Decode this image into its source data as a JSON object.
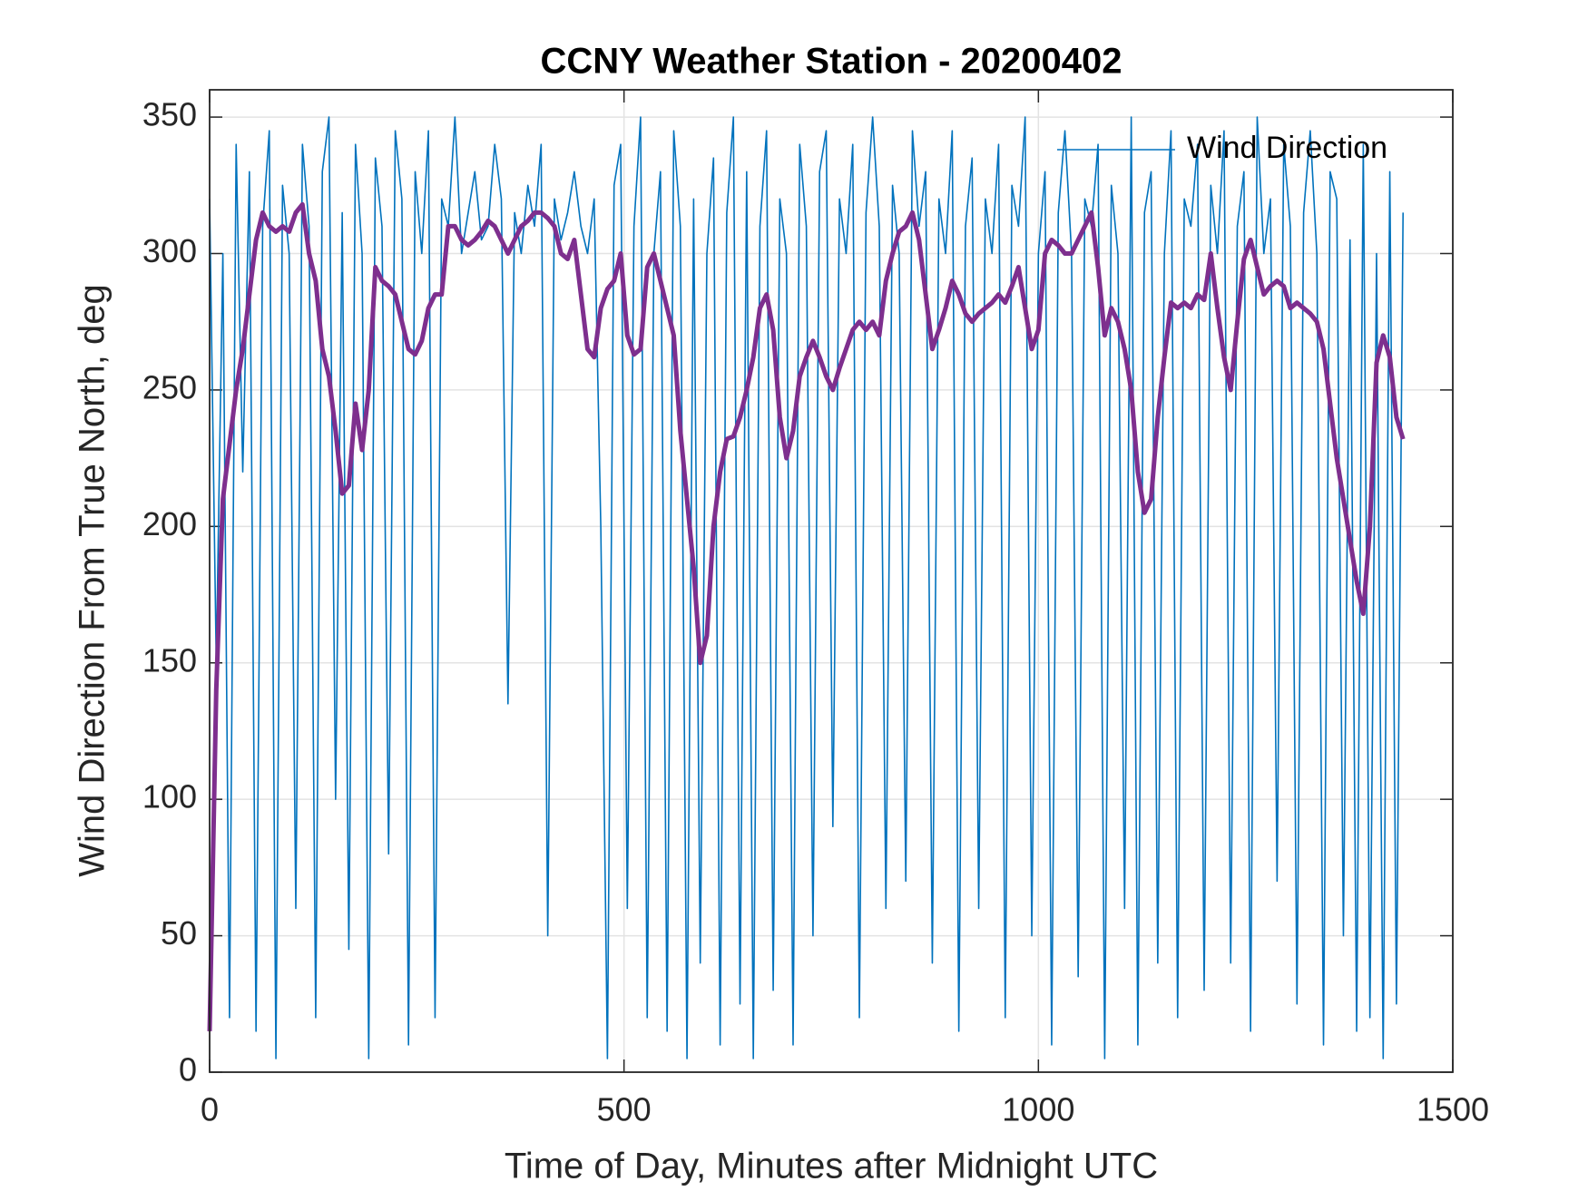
{
  "chart_data": {
    "type": "line",
    "title": "CCNY Weather Station - 20200402",
    "xlabel": "Time of Day, Minutes after Midnight UTC",
    "ylabel": "Wind Direction From True North, deg",
    "x": [
      0,
      8,
      16,
      24,
      32,
      40,
      48,
      56,
      64,
      72,
      80,
      88,
      96,
      104,
      112,
      120,
      128,
      136,
      144,
      152,
      160,
      168,
      176,
      184,
      192,
      200,
      208,
      216,
      224,
      232,
      240,
      248,
      256,
      264,
      272,
      280,
      288,
      296,
      304,
      312,
      320,
      328,
      336,
      344,
      352,
      360,
      368,
      376,
      384,
      392,
      400,
      408,
      416,
      424,
      432,
      440,
      448,
      456,
      464,
      472,
      480,
      488,
      496,
      504,
      512,
      520,
      528,
      536,
      544,
      552,
      560,
      568,
      576,
      584,
      592,
      600,
      608,
      616,
      624,
      632,
      640,
      648,
      656,
      664,
      672,
      680,
      688,
      696,
      704,
      712,
      720,
      728,
      736,
      744,
      752,
      760,
      768,
      776,
      784,
      792,
      800,
      808,
      816,
      824,
      832,
      840,
      848,
      856,
      864,
      872,
      880,
      888,
      896,
      904,
      912,
      920,
      928,
      936,
      944,
      952,
      960,
      968,
      976,
      984,
      992,
      1000,
      1008,
      1016,
      1024,
      1032,
      1040,
      1048,
      1056,
      1064,
      1072,
      1080,
      1088,
      1096,
      1104,
      1112,
      1120,
      1128,
      1136,
      1144,
      1152,
      1160,
      1168,
      1176,
      1184,
      1192,
      1200,
      1208,
      1216,
      1224,
      1232,
      1240,
      1248,
      1256,
      1264,
      1272,
      1280,
      1288,
      1296,
      1304,
      1312,
      1320,
      1328,
      1336,
      1344,
      1352,
      1360,
      1368,
      1376,
      1384,
      1392,
      1400,
      1408,
      1416,
      1424,
      1432,
      1440
    ],
    "series": [
      {
        "name": "Wind Direction",
        "color": "#0072BD",
        "width": 1.6,
        "values": [
          320,
          150,
          300,
          20,
          340,
          220,
          330,
          15,
          310,
          345,
          5,
          325,
          300,
          60,
          340,
          310,
          20,
          330,
          350,
          100,
          315,
          45,
          340,
          300,
          5,
          335,
          310,
          80,
          345,
          320,
          10,
          330,
          300,
          345,
          20,
          320,
          310,
          350,
          300,
          315,
          330,
          305,
          310,
          340,
          320,
          135,
          315,
          300,
          325,
          310,
          340,
          50,
          320,
          305,
          315,
          330,
          310,
          300,
          320,
          200,
          5,
          325,
          340,
          60,
          310,
          350,
          20,
          300,
          330,
          15,
          345,
          310,
          5,
          320,
          40,
          300,
          335,
          10,
          315,
          350,
          25,
          330,
          5,
          310,
          345,
          30,
          320,
          300,
          10,
          340,
          310,
          50,
          330,
          345,
          90,
          320,
          300,
          340,
          20,
          315,
          350,
          310,
          60,
          325,
          300,
          70,
          345,
          310,
          330,
          40,
          320,
          300,
          345,
          15,
          310,
          335,
          60,
          320,
          300,
          340,
          20,
          325,
          310,
          350,
          50,
          300,
          330,
          10,
          315,
          345,
          300,
          35,
          320,
          310,
          340,
          5,
          325,
          300,
          60,
          350,
          10,
          315,
          330,
          40,
          300,
          345,
          20,
          320,
          310,
          340,
          30,
          325,
          300,
          345,
          40,
          310,
          330,
          15,
          350,
          300,
          320,
          70,
          340,
          310,
          25,
          315,
          345,
          300,
          10,
          330,
          320,
          50,
          305,
          15,
          340,
          20,
          300,
          5,
          330,
          25,
          315
        ]
      },
      {
        "color": "#7E2F8E",
        "width": 5,
        "values": [
          15,
          140,
          210,
          230,
          250,
          265,
          285,
          305,
          315,
          310,
          308,
          310,
          308,
          315,
          318,
          300,
          290,
          265,
          255,
          235,
          212,
          215,
          245,
          228,
          250,
          295,
          290,
          288,
          285,
          275,
          265,
          263,
          268,
          280,
          285,
          285,
          310,
          310,
          305,
          303,
          305,
          308,
          312,
          310,
          305,
          300,
          305,
          310,
          312,
          315,
          315,
          313,
          310,
          300,
          298,
          305,
          285,
          265,
          262,
          280,
          287,
          290,
          300,
          270,
          263,
          265,
          295,
          300,
          290,
          280,
          270,
          235,
          210,
          185,
          150,
          160,
          200,
          220,
          232,
          233,
          240,
          250,
          262,
          280,
          285,
          272,
          240,
          225,
          235,
          255,
          262,
          268,
          262,
          255,
          250,
          258,
          265,
          272,
          275,
          272,
          275,
          270,
          290,
          300,
          308,
          310,
          315,
          305,
          285,
          265,
          272,
          280,
          290,
          285,
          278,
          275,
          278,
          280,
          282,
          285,
          282,
          288,
          295,
          280,
          265,
          272,
          300,
          305,
          303,
          300,
          300,
          305,
          310,
          315,
          295,
          270,
          280,
          275,
          265,
          250,
          220,
          205,
          210,
          240,
          262,
          282,
          280,
          282,
          280,
          285,
          283,
          300,
          280,
          262,
          250,
          275,
          298,
          305,
          295,
          285,
          288,
          290,
          288,
          280,
          282,
          280,
          278,
          275,
          265,
          245,
          225,
          210,
          195,
          180,
          168,
          200,
          260,
          270,
          262,
          240,
          232
        ]
      }
    ],
    "xlim": [
      0,
      1500
    ],
    "xticks": [
      0,
      500,
      1000,
      1500
    ],
    "ylim": [
      0,
      360
    ],
    "yticks": [
      0,
      50,
      100,
      150,
      200,
      250,
      300,
      350
    ],
    "grid": true,
    "legend": "northeast"
  }
}
